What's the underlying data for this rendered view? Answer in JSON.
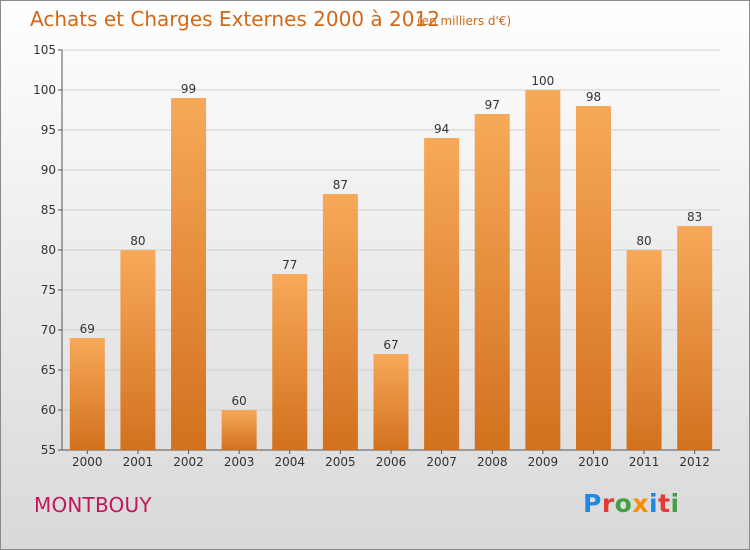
{
  "header": {
    "title": "Achats et Charges Externes 2000 à 2012",
    "subtitle": "(en milliers d'€)"
  },
  "place_name": "MONTBOUY",
  "logo": {
    "text": "Proxiti",
    "letter_colors": [
      "#1e88e5",
      "#e53935",
      "#43a047",
      "#fb8c00",
      "#1e88e5",
      "#e53935",
      "#43a047"
    ]
  },
  "colors": {
    "bar_top": "#f7a959",
    "bar_bottom": "#d2711e",
    "title": "#d0691a",
    "place": "#c2185b"
  },
  "chart_data": {
    "type": "bar",
    "title": "Achats et Charges Externes 2000 à 2012",
    "subtitle": "(en milliers d'€)",
    "xlabel": "",
    "ylabel": "",
    "categories": [
      "2000",
      "2001",
      "2002",
      "2003",
      "2004",
      "2005",
      "2006",
      "2007",
      "2008",
      "2009",
      "2010",
      "2011",
      "2012"
    ],
    "values": [
      69,
      80,
      99,
      60,
      77,
      87,
      67,
      94,
      97,
      100,
      98,
      80,
      83
    ],
    "ylim": [
      55,
      105
    ],
    "yticks": [
      55,
      60,
      65,
      70,
      75,
      80,
      85,
      90,
      95,
      100,
      105
    ],
    "grid": true,
    "legend": "none",
    "data_labels": true
  }
}
